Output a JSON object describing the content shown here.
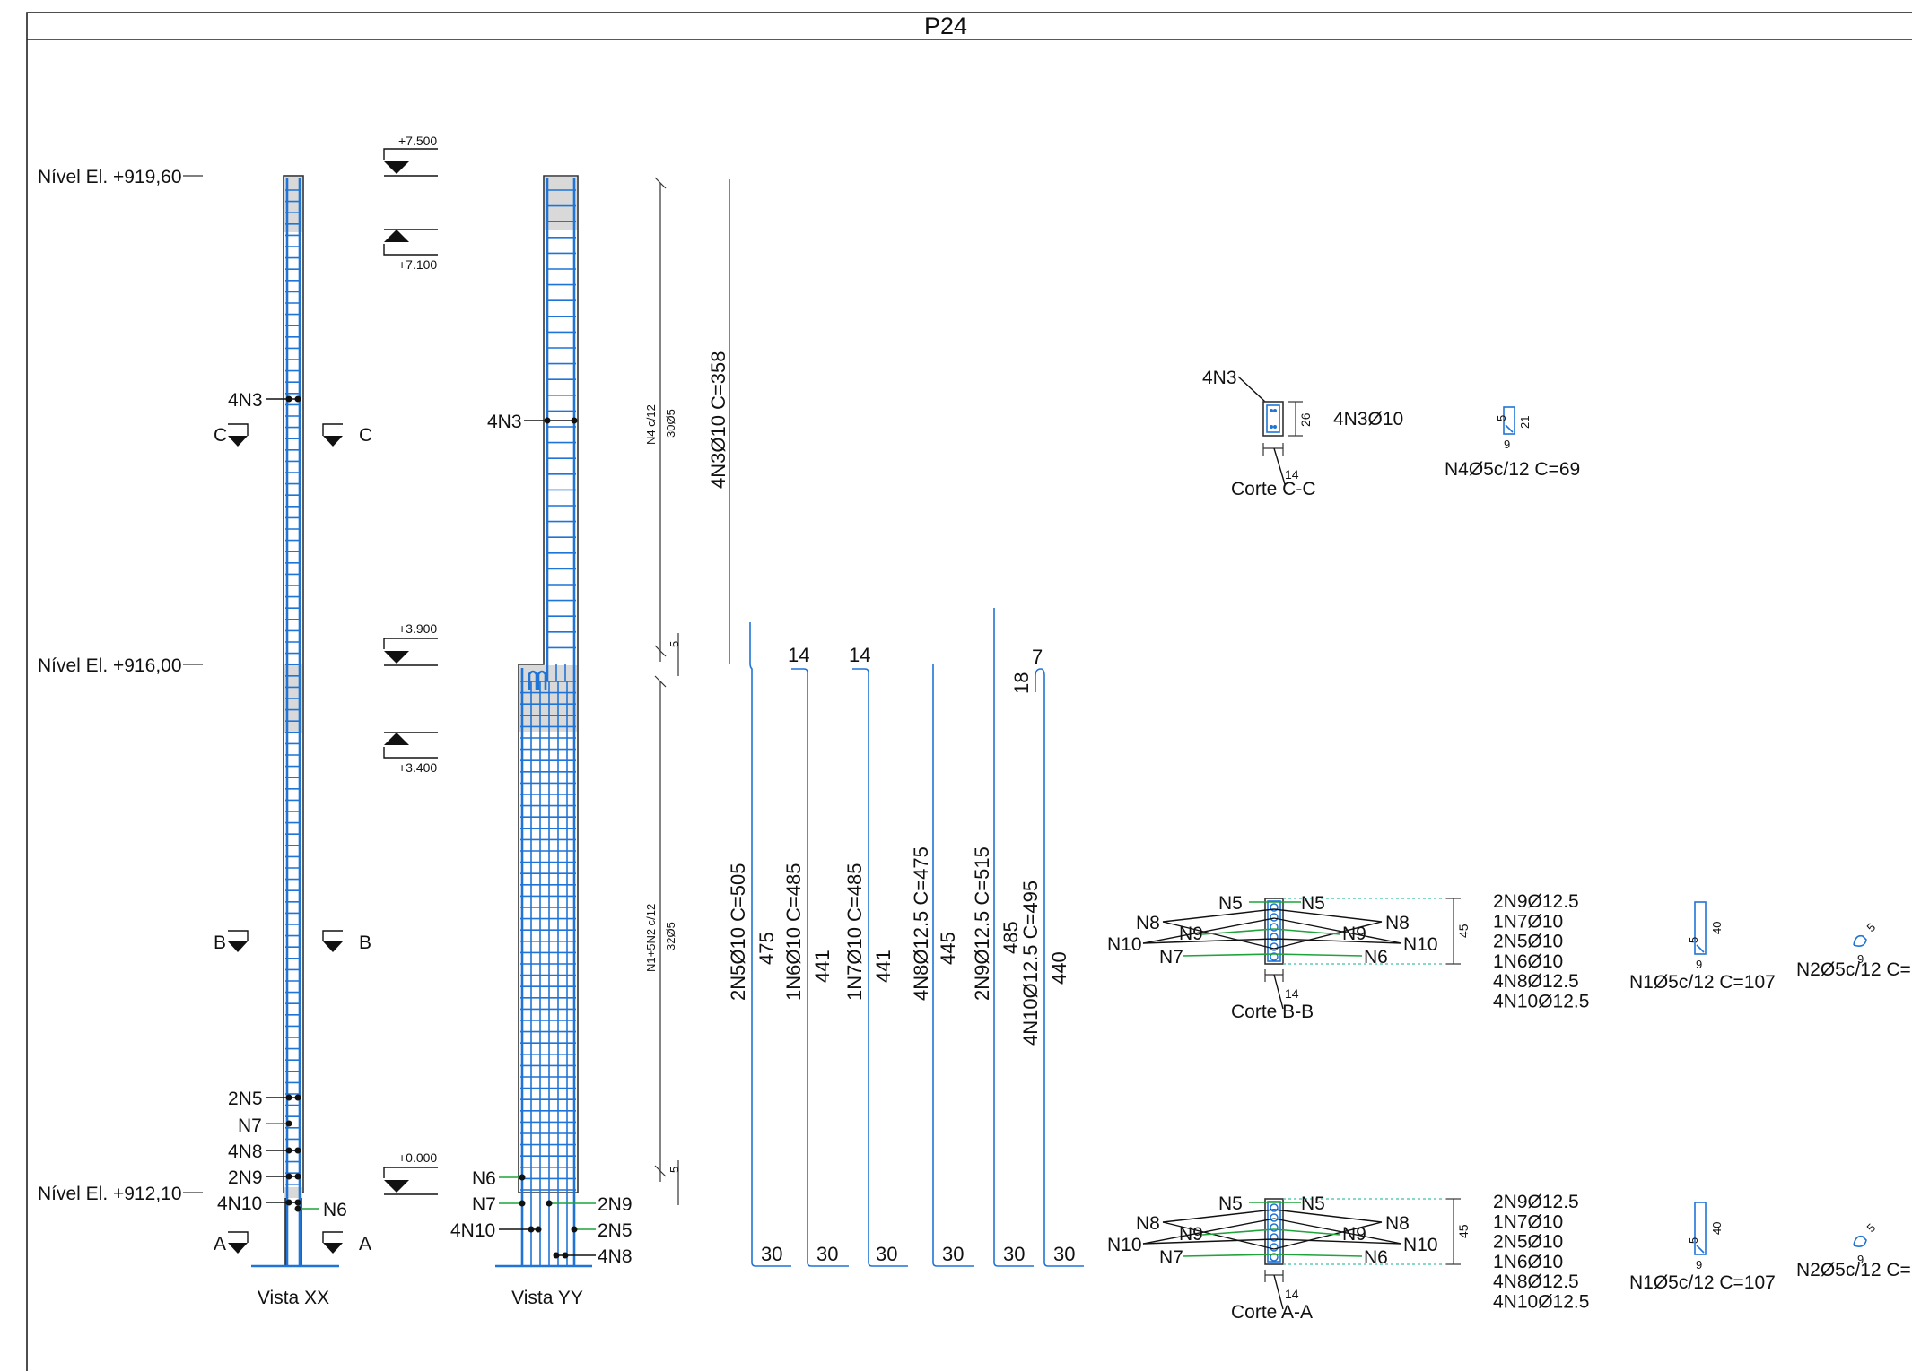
{
  "drawing": {
    "title": "P24",
    "levels": {
      "top": "Nível El. +919,60",
      "mid": "Nível El. +916,00",
      "bottom": "Nível El. +912,10"
    },
    "elevations": {
      "e1": "+7.500",
      "e2": "+7.100",
      "e3": "+3.900",
      "e4": "+3.400",
      "e5": "+0.000"
    },
    "section_marks": {
      "c": "C",
      "b": "B",
      "a": "A"
    },
    "views": {
      "xx": "Vista XX",
      "yy": "Vista YY"
    },
    "xx_labels": [
      "4N3",
      "2N5",
      "N7",
      "4N8",
      "2N9",
      "4N10",
      "N6"
    ],
    "yy_labels": {
      "n3": "4N3",
      "n6": "N6",
      "n7": "N7",
      "n10": "4N10",
      "n9": "2N9",
      "n5": "2N5",
      "n8": "4N8"
    },
    "stirrup_dims": {
      "top_label": "N4 c/12",
      "top_count": "30Ø5",
      "bottom_label": "N1+5N2 c/12",
      "bottom_count": "32Ø5",
      "gap1": "5",
      "gap2": "5"
    },
    "bars": {
      "b3": "4N3Ø10 C=358",
      "b5": "2N5Ø10 C=505",
      "b5_len": "475",
      "b6": "1N6Ø10 C=485",
      "b6_len": "441",
      "b6_hook": "14",
      "b7": "1N7Ø10 C=485",
      "b7_len": "441",
      "b7_hook": "14",
      "b8": "4N8Ø12.5 C=475",
      "b8_len": "445",
      "b9": "2N9Ø12.5 C=515",
      "b9_len": "485",
      "b10": "4N10Ø12.5 C=495",
      "b10_len": "440",
      "b10_hook": "7",
      "b10_hook2": "18",
      "foot": "30"
    },
    "section_c": {
      "name": "Corte C-C",
      "label": "4N3",
      "spec": "4N3Ø10",
      "dim_h": "26",
      "dim_w": "14",
      "stirrup": "N4Ø5c/12 C=69",
      "stirrup_h": "21",
      "stirrup_w": "9",
      "stirrup_hook": "5"
    },
    "section_b": {
      "name": "Corte B-B",
      "dim_h": "45",
      "dim_w": "14",
      "l_n5": "N5",
      "r_n5": "N5",
      "l_n8": "N8",
      "r_n8": "N8",
      "l_n9": "N9",
      "r_n9": "N9",
      "l_n10": "N10",
      "r_n10": "N10",
      "l_n7": "N7",
      "r_n6": "N6",
      "list": [
        "2N9Ø12.5",
        "1N7Ø10",
        "2N5Ø10",
        "1N6Ø10",
        "4N8Ø12.5",
        "4N10Ø12.5"
      ],
      "stirrup1": "N1Ø5c/12 C=107",
      "s1_h": "40",
      "s1_w": "9",
      "s1_hook": "5",
      "stirrup2": "N2Ø5c/12 C=",
      "s2_w": "9",
      "s2_hook": "5"
    },
    "section_a": {
      "name": "Corte A-A",
      "dim_h": "45",
      "dim_w": "14",
      "l_n5": "N5",
      "r_n5": "N5",
      "l_n8": "N8",
      "r_n8": "N8",
      "l_n9": "N9",
      "r_n9": "N9",
      "l_n10": "N10",
      "r_n10": "N10",
      "l_n7": "N7",
      "r_n6": "N6",
      "list": [
        "2N9Ø12.5",
        "1N7Ø10",
        "2N5Ø10",
        "1N6Ø10",
        "4N8Ø12.5",
        "4N10Ø12.5"
      ],
      "stirrup1": "N1Ø5c/12 C=107",
      "s1_h": "40",
      "s1_w": "9",
      "s1_hook": "5",
      "stirrup2": "N2Ø5c/12 C=",
      "s2_w": "9",
      "s2_hook": "5"
    }
  }
}
